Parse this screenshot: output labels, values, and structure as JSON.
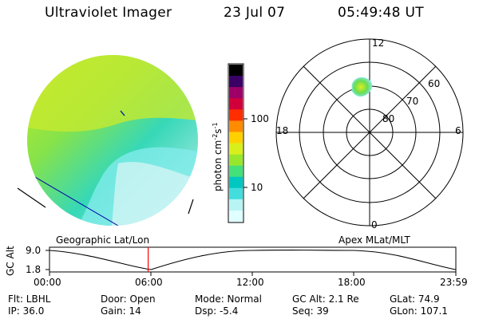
{
  "header": {
    "title": "Ultraviolet Imager",
    "date": "23 Jul 07",
    "time": "05:49:48 UT"
  },
  "colorbar": {
    "tick_100": "100",
    "tick_10": "10",
    "unit_prefix": "photon cm",
    "unit_exp1": "-2",
    "unit_mid": "s",
    "unit_exp2": "-1",
    "colors": [
      "#e0ffff",
      "#b8f4f4",
      "#44dddd",
      "#00c8c0",
      "#44e07a",
      "#99e72c",
      "#d9ef1c",
      "#ffd000",
      "#ff8c00",
      "#ff2e00",
      "#d2003a",
      "#9d0066",
      "#3a0066",
      "#000000"
    ]
  },
  "polar_plot": {
    "labels": {
      "top": "12",
      "right": "6",
      "bottom": "0",
      "left": "18",
      "ring_80": "80",
      "ring_70": "70",
      "ring_60": "60"
    }
  },
  "map_labels": {
    "left": "Geographic Lat/Lon",
    "right": "Apex MLat/MLT"
  },
  "altitude_chart": {
    "ylabel": "GC Alt",
    "ytick": "9.0",
    "ytick2": "1.8",
    "xticks": [
      "00:00",
      "06:00",
      "12:00",
      "18:00",
      "23:59"
    ]
  },
  "status": {
    "flt": "Flt: LBHL",
    "door": "Door: Open",
    "mode": "Mode: Normal",
    "gc_alt": "GC Alt: 2.1 Re",
    "glat": "GLat:  74.9",
    "ip": "IP: 36.0",
    "gain": "Gain: 14",
    "dsp": "Dsp:    -5.4",
    "seq": "Seq: 39",
    "glon": "GLon: 107.1"
  },
  "chart_data": {
    "type": "line",
    "x": [
      "00:00",
      "06:00",
      "12:00",
      "18:00",
      "23:59"
    ],
    "y": [
      9.0,
      1.8,
      9.0,
      9.0,
      1.8
    ],
    "xlabel": "",
    "ylabel": "GC Alt",
    "marker_time": "05:49:48"
  }
}
